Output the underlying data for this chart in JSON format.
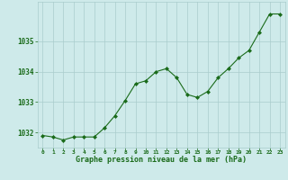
{
  "x": [
    0,
    1,
    2,
    3,
    4,
    5,
    6,
    7,
    8,
    9,
    10,
    11,
    12,
    13,
    14,
    15,
    16,
    17,
    18,
    19,
    20,
    21,
    22,
    23
  ],
  "y": [
    1031.9,
    1031.85,
    1031.75,
    1031.85,
    1031.85,
    1031.85,
    1032.15,
    1032.55,
    1033.05,
    1033.6,
    1033.7,
    1034.0,
    1034.1,
    1033.8,
    1033.25,
    1033.15,
    1033.35,
    1033.8,
    1034.1,
    1034.45,
    1034.7,
    1035.3,
    1035.9,
    1035.9
  ],
  "line_color": "#1a6b1a",
  "marker": "D",
  "marker_size": 2.0,
  "bg_color": "#ceeaea",
  "grid_color": "#aacccc",
  "xlabel": "Graphe pression niveau de la mer (hPa)",
  "xlabel_color": "#1a6b1a",
  "tick_color": "#1a6b1a",
  "ylim": [
    1031.5,
    1036.3
  ],
  "yticks": [
    1032,
    1033,
    1034,
    1035
  ],
  "xlim": [
    -0.5,
    23.5
  ],
  "xticks": [
    0,
    1,
    2,
    3,
    4,
    5,
    6,
    7,
    8,
    9,
    10,
    11,
    12,
    13,
    14,
    15,
    16,
    17,
    18,
    19,
    20,
    21,
    22,
    23
  ]
}
